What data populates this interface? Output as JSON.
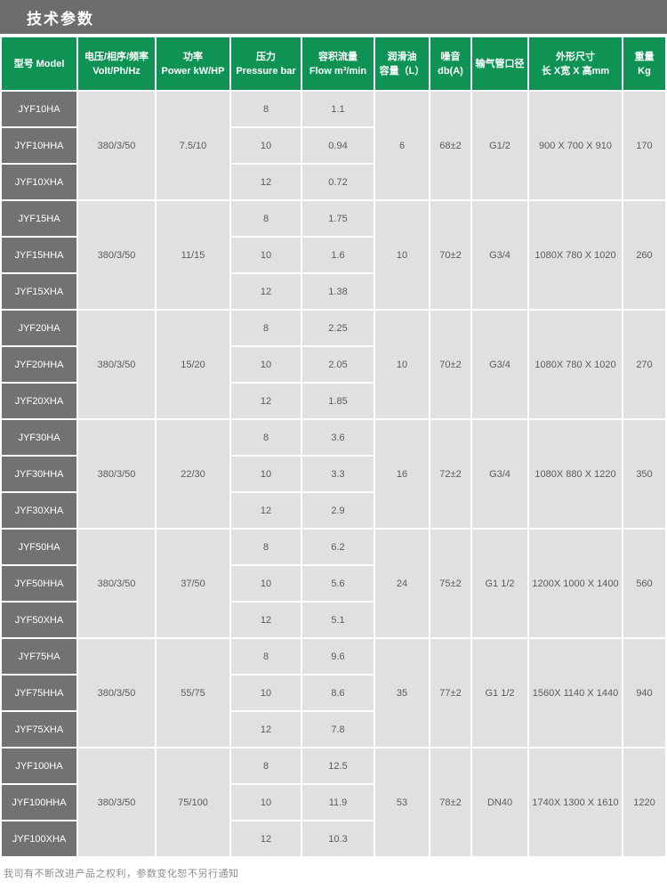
{
  "page_title": "技术参数",
  "colors": {
    "accent_green": "#0e9355",
    "title_gray": "#6d6d6d",
    "model_gray": "#717274",
    "cell_gray": "#e0e0e0"
  },
  "table": {
    "headers": [
      {
        "line1": "型号 Model",
        "line2": ""
      },
      {
        "line1": "电压/相序/频率",
        "line2": "Volt/Ph/Hz"
      },
      {
        "line1": "功率",
        "line2": "Power kW/HP"
      },
      {
        "line1": "压力",
        "line2": "Pressure bar"
      },
      {
        "line1": "容积流量",
        "line2": "Flow m³/min"
      },
      {
        "line1": "润滑油",
        "line2": "容量（L）"
      },
      {
        "line1": "噪音",
        "line2": "db(A)"
      },
      {
        "line1": "输气管口径",
        "line2": ""
      },
      {
        "line1": "外形尺寸",
        "line2": "长 X宽 X 高mm"
      },
      {
        "line1": "重量",
        "line2": "Kg"
      }
    ],
    "groups": [
      {
        "models": [
          "JYF10HA",
          "JYF10HHA",
          "JYF10XHA"
        ],
        "voltage": "380/3/50",
        "power": "7.5/10",
        "pressures": [
          "8",
          "10",
          "12"
        ],
        "flows": [
          "1.1",
          "0.94",
          "0.72"
        ],
        "oil": "6",
        "noise": "68±2",
        "pipe": "G1/2",
        "dimensions": "900 X 700 X 910",
        "weight": "170"
      },
      {
        "models": [
          "JYF15HA",
          "JYF15HHA",
          "JYF15XHA"
        ],
        "voltage": "380/3/50",
        "power": "11/15",
        "pressures": [
          "8",
          "10",
          "12"
        ],
        "flows": [
          "1.75",
          "1.6",
          "1.38"
        ],
        "oil": "10",
        "noise": "70±2",
        "pipe": "G3/4",
        "dimensions": "1080X 780 X 1020",
        "weight": "260"
      },
      {
        "models": [
          "JYF20HA",
          "JYF20HHA",
          "JYF20XHA"
        ],
        "voltage": "380/3/50",
        "power": "15/20",
        "pressures": [
          "8",
          "10",
          "12"
        ],
        "flows": [
          "2.25",
          "2.05",
          "1.85"
        ],
        "oil": "10",
        "noise": "70±2",
        "pipe": "G3/4",
        "dimensions": "1080X 780 X 1020",
        "weight": "270"
      },
      {
        "models": [
          "JYF30HA",
          "JYF30HHA",
          "JYF30XHA"
        ],
        "voltage": "380/3/50",
        "power": "22/30",
        "pressures": [
          "8",
          "10",
          "12"
        ],
        "flows": [
          "3.6",
          "3.3",
          "2.9"
        ],
        "oil": "16",
        "noise": "72±2",
        "pipe": "G3/4",
        "dimensions": "1080X 880 X 1220",
        "weight": "350"
      },
      {
        "models": [
          "JYF50HA",
          "JYF50HHA",
          "JYF50XHA"
        ],
        "voltage": "380/3/50",
        "power": "37/50",
        "pressures": [
          "8",
          "10",
          "12"
        ],
        "flows": [
          "6.2",
          "5.6",
          "5.1"
        ],
        "oil": "24",
        "noise": "75±2",
        "pipe": "G1 1/2",
        "dimensions": "1200X 1000 X 1400",
        "weight": "560"
      },
      {
        "models": [
          "JYF75HA",
          "JYF75HHA",
          "JYF75XHA"
        ],
        "voltage": "380/3/50",
        "power": "55/75",
        "pressures": [
          "8",
          "10",
          "12"
        ],
        "flows": [
          "9.6",
          "8.6",
          "7.8"
        ],
        "oil": "35",
        "noise": "77±2",
        "pipe": "G1 1/2",
        "dimensions": "1560X 1140 X 1440",
        "weight": "940"
      },
      {
        "models": [
          "JYF100HA",
          "JYF100HHA",
          "JYF100XHA"
        ],
        "voltage": "380/3/50",
        "power": "75/100",
        "pressures": [
          "8",
          "10",
          "12"
        ],
        "flows": [
          "12.5",
          "11.9",
          "10.3"
        ],
        "oil": "53",
        "noise": "78±2",
        "pipe": "DN40",
        "dimensions": "1740X 1300 X 1610",
        "weight": "1220"
      }
    ]
  },
  "footer_note": "我司有不断改进产品之权利，参数变化恕不另行通知"
}
